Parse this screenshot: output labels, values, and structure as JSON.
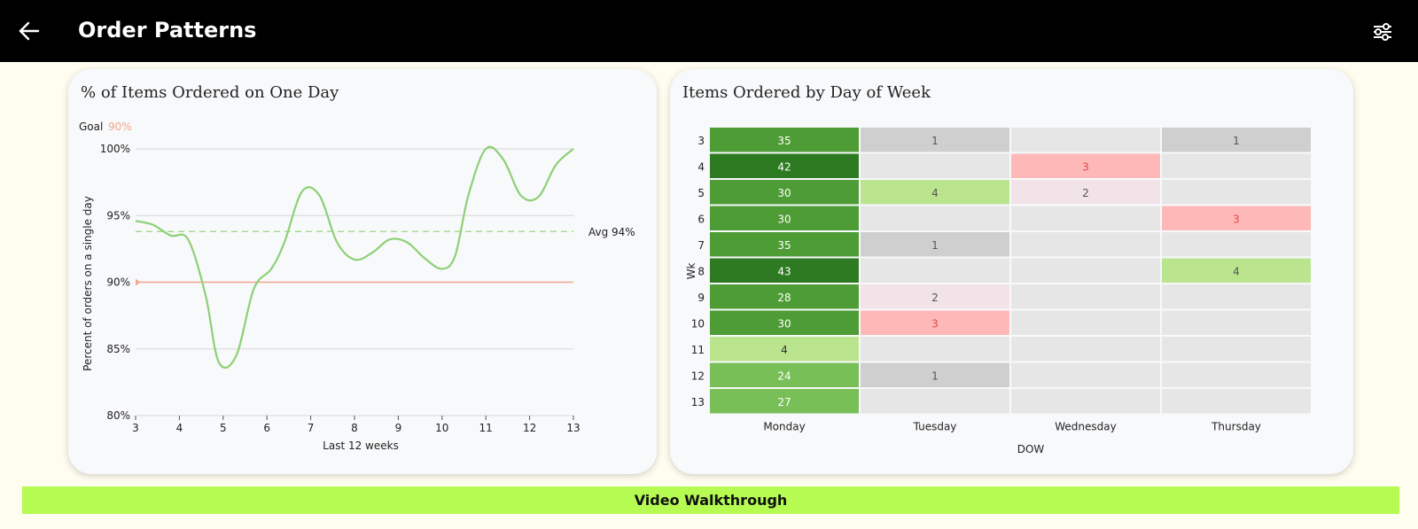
{
  "header": {
    "title": "Order Patterns",
    "back_icon": "arrow-left-icon",
    "filter_icon": "sliders-icon"
  },
  "line_card": {
    "title": "% of Items Ordered on One Day",
    "goal_label": "Goal",
    "goal_value": "90%",
    "avg_label": "Avg 94%"
  },
  "heatmap_card": {
    "title": "Items Ordered by Day of Week"
  },
  "footer": {
    "video_label": "Video Walkthrough"
  },
  "colors": {
    "line": "#8ed075",
    "goal": "#f2a58c",
    "avg": "#a7dd8c",
    "positive_strong": "#2e7a22",
    "positive": "#4d9c35",
    "positive_mid": "#78bf58",
    "positive_light": "#bbe48f",
    "neutral": "#e6e6e6",
    "neutral_dark": "#cfcfcf",
    "warn_light": "#f2e3e8",
    "warn": "#feb8b8"
  },
  "chart_data": [
    {
      "type": "line",
      "title": "% of Items Ordered on One Day",
      "xlabel": "Last 12 weeks",
      "ylabel": "Percent of orders on a single day",
      "x": [
        3,
        4,
        5,
        6,
        7,
        8,
        9,
        10,
        11,
        12,
        13
      ],
      "ytick_labels": [
        "80%",
        "85%",
        "90%",
        "95%",
        "100%"
      ],
      "yticks": [
        80,
        85,
        90,
        95,
        100
      ],
      "ylim": [
        80,
        100
      ],
      "xlim": [
        3,
        13
      ],
      "series": [
        {
          "name": "Percent",
          "points": [
            [
              3,
              94.6
            ],
            [
              3.4,
              94.3
            ],
            [
              3.8,
              93.5
            ],
            [
              4.2,
              93.2
            ],
            [
              4.6,
              89.0
            ],
            [
              4.9,
              84.0
            ],
            [
              5.3,
              84.5
            ],
            [
              5.7,
              89.5
            ],
            [
              6.1,
              91.0
            ],
            [
              6.4,
              93.0
            ],
            [
              6.8,
              96.8
            ],
            [
              7.2,
              96.5
            ],
            [
              7.6,
              93.0
            ],
            [
              8.0,
              91.7
            ],
            [
              8.4,
              92.2
            ],
            [
              8.8,
              93.2
            ],
            [
              9.2,
              93.0
            ],
            [
              9.6,
              91.8
            ],
            [
              10.0,
              91.0
            ],
            [
              10.3,
              92.0
            ],
            [
              10.6,
              96.5
            ],
            [
              11.0,
              100.0
            ],
            [
              11.4,
              99.2
            ],
            [
              11.8,
              96.5
            ],
            [
              12.2,
              96.4
            ],
            [
              12.6,
              98.8
            ],
            [
              13.0,
              100.0
            ]
          ]
        }
      ],
      "goal": 90,
      "avg": 93.8
    },
    {
      "type": "heatmap",
      "title": "Items Ordered by Day of Week",
      "xlabel": "DOW",
      "ylabel": "Wk",
      "columns": [
        "Monday",
        "Tuesday",
        "Wednesday",
        "Thursday"
      ],
      "rows": [
        "3",
        "4",
        "5",
        "6",
        "7",
        "8",
        "9",
        "10",
        "11",
        "12",
        "13"
      ],
      "values": [
        [
          35,
          1,
          null,
          1
        ],
        [
          42,
          null,
          3,
          null
        ],
        [
          30,
          4,
          2,
          null
        ],
        [
          30,
          null,
          null,
          3
        ],
        [
          35,
          1,
          null,
          null
        ],
        [
          43,
          null,
          null,
          4
        ],
        [
          28,
          2,
          null,
          null
        ],
        [
          30,
          3,
          null,
          null
        ],
        [
          4,
          null,
          null,
          null
        ],
        [
          24,
          1,
          null,
          null
        ],
        [
          27,
          null,
          null,
          null
        ]
      ]
    }
  ]
}
